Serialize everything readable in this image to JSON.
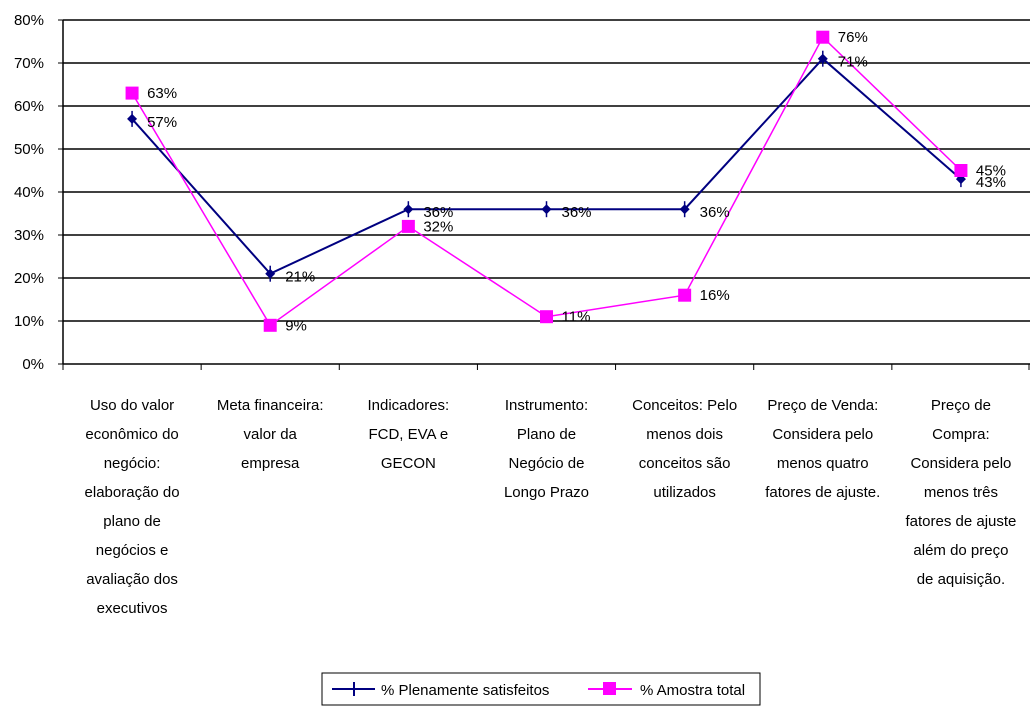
{
  "chart_data": {
    "type": "line",
    "categories": [
      [
        "Uso do valor",
        "econômico do",
        "negócio:",
        "elaboração do",
        "plano de",
        "negócios e",
        "avaliação dos",
        "executivos"
      ],
      [
        "Meta financeira:",
        "valor da",
        "empresa"
      ],
      [
        "Indicadores:",
        "FCD, EVA e",
        "GECON"
      ],
      [
        "Instrumento:",
        "Plano de",
        "Negócio de",
        "Longo Prazo"
      ],
      [
        "Conceitos: Pelo",
        "menos dois",
        "conceitos são",
        "utilizados"
      ],
      [
        "Preço de Venda:",
        "Considera pelo",
        "menos quatro",
        "fatores de ajuste."
      ],
      [
        "Preço de",
        "Compra:",
        "Considera pelo",
        "menos três",
        "fatores de ajuste",
        "além do preço",
        "de aquisição."
      ]
    ],
    "series": [
      {
        "name": "% Plenamente satisfeitos",
        "color": "#000080",
        "marker": "diamond",
        "values": [
          57,
          21,
          36,
          36,
          36,
          71,
          43
        ],
        "labels": [
          "57%",
          "21%",
          "36%",
          "36%",
          "36%",
          "71%",
          "43%"
        ]
      },
      {
        "name": "% Amostra total",
        "color": "#FF00FF",
        "marker": "square",
        "values": [
          63,
          9,
          32,
          11,
          16,
          76,
          45
        ],
        "labels": [
          "63%",
          "9%",
          "32%",
          "11%",
          "16%",
          "76%",
          "45%"
        ]
      }
    ],
    "yticks": [
      "0%",
      "10%",
      "20%",
      "30%",
      "40%",
      "50%",
      "60%",
      "70%",
      "80%"
    ],
    "ylim": [
      0,
      80
    ],
    "grid": true,
    "legend_position": "bottom-center"
  }
}
